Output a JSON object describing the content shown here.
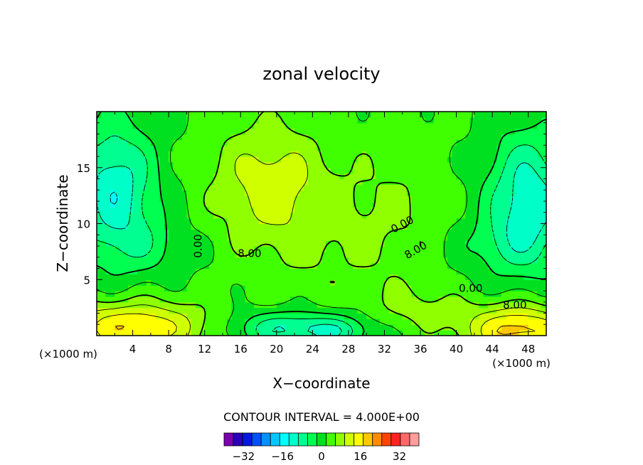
{
  "chart_data": {
    "type": "heatmap",
    "title": "zonal velocity",
    "xlabel": "X−coordinate",
    "ylabel": "Z−coordinate",
    "x_unit_left": "(×1000 m)",
    "x_unit_right": "(×1000 m)",
    "xlim": [
      0,
      50
    ],
    "ylim": [
      0,
      20
    ],
    "xticks": [
      4,
      8,
      12,
      16,
      20,
      24,
      28,
      32,
      36,
      40,
      44,
      48
    ],
    "yticks": [
      5,
      10,
      15
    ],
    "contour_interval_text": "CONTOUR INTERVAL = 4.000E+00",
    "colorbar": {
      "levels": [
        -40,
        -36,
        -32,
        -28,
        -24,
        -20,
        -16,
        -12,
        -8,
        -4,
        0,
        4,
        8,
        12,
        16,
        20,
        24,
        28,
        32,
        36,
        40
      ],
      "tick_values": [
        -32,
        -16,
        0,
        16,
        32
      ],
      "tick_labels": [
        "−32",
        "−16",
        "0",
        "16",
        "32"
      ],
      "colors": [
        "#7a00b0",
        "#2a00b8",
        "#0018e0",
        "#0050ff",
        "#0090ff",
        "#00c8ff",
        "#00ffff",
        "#00ffc8",
        "#00ff90",
        "#00ff50",
        "#00e020",
        "#40ff00",
        "#90ff00",
        "#d0ff00",
        "#ffff00",
        "#ffc800",
        "#ff8c00",
        "#ff4400",
        "#ff2020",
        "#ff6868",
        "#ff9c9c"
      ]
    },
    "contour_labels": [
      {
        "text": "0.00",
        "x": 11.3,
        "z": 8.0,
        "rotate": -90
      },
      {
        "text": "8.00",
        "x": 17.0,
        "z": 7.3,
        "rotate": 0
      },
      {
        "text": "0.00",
        "x": 34.0,
        "z": 9.9,
        "rotate": -28
      },
      {
        "text": "8.00",
        "x": 35.5,
        "z": 7.6,
        "rotate": -30
      },
      {
        "text": "0.00",
        "x": 41.6,
        "z": 4.2,
        "rotate": 0
      },
      {
        "text": "8.00",
        "x": 46.5,
        "z": 2.7,
        "rotate": 0
      }
    ]
  }
}
